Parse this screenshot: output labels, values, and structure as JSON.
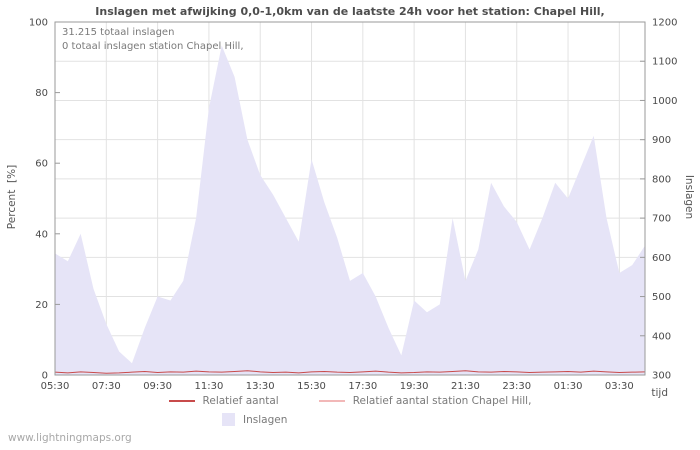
{
  "page": {
    "title": "Inslagen met afwijking 0,0-1,0km van de laatste 24h voor het station: Chapel Hill,",
    "watermark": "www.lightningmaps.org"
  },
  "annotations": {
    "total_strikes": "31.215 totaal inslagen",
    "station_total": "0 totaal inslagen station Chapel Hill,"
  },
  "axes": {
    "left_label": "Percent  [%]",
    "right_label": "Inslagen",
    "x_label": "tijd"
  },
  "legend": {
    "relative": "Relatief aantal",
    "relative_station": "Relatief aantal station Chapel Hill,",
    "strikes": "Inslagen"
  },
  "colors": {
    "area": "#e6e4f7",
    "line_relative": "#c84b4b",
    "line_relative_station": "#f2b8b8",
    "grid": "#e2e2e2",
    "axis": "#9a9a9a",
    "text": "#4a4a4a"
  },
  "chart_data": {
    "type": "area",
    "title": "Inslagen met afwijking 0,0-1,0km van de laatste 24h voor het station: Chapel Hill,",
    "xlabel": "tijd",
    "x_ticks": [
      "05:30",
      "07:30",
      "09:30",
      "11:30",
      "13:30",
      "15:30",
      "17:30",
      "19:30",
      "21:30",
      "23:30",
      "01:30",
      "03:30"
    ],
    "x_tick_positions": [
      0,
      4,
      8,
      12,
      16,
      20,
      24,
      28,
      32,
      36,
      40,
      44
    ],
    "x_count": 47,
    "left_axis": {
      "label": "Percent [%]",
      "min": 0,
      "max": 100,
      "ticks": [
        0,
        20,
        40,
        60,
        80,
        100
      ]
    },
    "right_axis": {
      "label": "Inslagen",
      "min": 300,
      "max": 1200,
      "ticks": [
        300,
        400,
        500,
        600,
        700,
        800,
        900,
        1000,
        1100,
        1200
      ]
    },
    "grid": true,
    "legend_position": "bottom",
    "series": [
      {
        "name": "Inslagen",
        "type": "area",
        "axis": "right",
        "values": [
          610,
          590,
          660,
          520,
          430,
          360,
          330,
          420,
          500,
          490,
          540,
          700,
          980,
          1140,
          1060,
          900,
          810,
          760,
          700,
          640,
          850,
          740,
          650,
          540,
          560,
          500,
          420,
          350,
          490,
          460,
          480,
          700,
          540,
          620,
          790,
          730,
          690,
          620,
          700,
          790,
          750,
          830,
          910,
          700,
          560,
          580,
          630
        ]
      },
      {
        "name": "Relatief aantal",
        "type": "line",
        "axis": "left",
        "values": [
          0.8,
          0.6,
          0.9,
          0.7,
          0.5,
          0.6,
          0.8,
          1.0,
          0.7,
          0.9,
          0.8,
          1.1,
          0.9,
          0.8,
          1.0,
          1.2,
          0.9,
          0.7,
          0.8,
          0.6,
          0.9,
          1.0,
          0.8,
          0.7,
          0.9,
          1.1,
          0.8,
          0.6,
          0.7,
          0.9,
          0.8,
          1.0,
          1.2,
          0.9,
          0.8,
          1.0,
          0.9,
          0.7,
          0.8,
          0.9,
          1.0,
          0.8,
          1.1,
          0.9,
          0.7,
          0.8,
          0.9
        ]
      },
      {
        "name": "Relatief aantal station Chapel Hill,",
        "type": "line",
        "axis": "left",
        "values": [
          0,
          0,
          0,
          0,
          0,
          0,
          0,
          0,
          0,
          0,
          0,
          0,
          0,
          0,
          0,
          0,
          0,
          0,
          0,
          0,
          0,
          0,
          0,
          0,
          0,
          0,
          0,
          0,
          0,
          0,
          0,
          0,
          0,
          0,
          0,
          0,
          0,
          0,
          0,
          0,
          0,
          0,
          0,
          0,
          0,
          0,
          0
        ]
      }
    ]
  }
}
